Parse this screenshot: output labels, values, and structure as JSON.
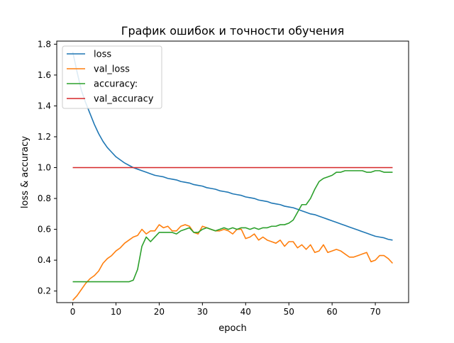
{
  "chart_data": {
    "type": "line",
    "title": "График ошибок и точности обучения",
    "xlabel": "epoch",
    "ylabel": "loss & accuracy",
    "xlim": [
      -3.7,
      77.7
    ],
    "ylim": [
      0.125,
      1.82
    ],
    "xticks": [
      0,
      10,
      20,
      30,
      40,
      50,
      60,
      70
    ],
    "yticks": [
      0.2,
      0.4,
      0.6,
      0.8,
      1.0,
      1.2,
      1.4,
      1.6,
      1.8
    ],
    "ytick_labels": [
      "0.2",
      "0.4",
      "0.6",
      "0.8",
      "1.0",
      "1.2",
      "1.4",
      "1.6",
      "1.8"
    ],
    "grid": false,
    "legend_position": "top-left",
    "series": [
      {
        "name": "loss",
        "color": "#1f77b4",
        "x": [
          0,
          1,
          2,
          3,
          4,
          5,
          6,
          7,
          8,
          9,
          10,
          11,
          12,
          13,
          14,
          15,
          16,
          17,
          18,
          19,
          20,
          21,
          22,
          23,
          24,
          25,
          26,
          27,
          28,
          29,
          30,
          31,
          32,
          33,
          34,
          35,
          36,
          37,
          38,
          39,
          40,
          41,
          42,
          43,
          44,
          45,
          46,
          47,
          48,
          49,
          50,
          51,
          52,
          53,
          54,
          55,
          56,
          57,
          58,
          59,
          60,
          61,
          62,
          63,
          64,
          65,
          66,
          67,
          68,
          69,
          70,
          71,
          72,
          73,
          74
        ],
        "y": [
          1.75,
          1.62,
          1.5,
          1.42,
          1.35,
          1.28,
          1.22,
          1.17,
          1.13,
          1.1,
          1.07,
          1.05,
          1.03,
          1.015,
          1.0,
          0.99,
          0.98,
          0.97,
          0.96,
          0.95,
          0.945,
          0.94,
          0.93,
          0.925,
          0.92,
          0.91,
          0.905,
          0.9,
          0.89,
          0.885,
          0.88,
          0.87,
          0.865,
          0.86,
          0.85,
          0.845,
          0.84,
          0.83,
          0.825,
          0.82,
          0.81,
          0.805,
          0.8,
          0.79,
          0.785,
          0.78,
          0.77,
          0.765,
          0.76,
          0.75,
          0.745,
          0.74,
          0.73,
          0.72,
          0.71,
          0.7,
          0.695,
          0.685,
          0.675,
          0.665,
          0.655,
          0.645,
          0.635,
          0.625,
          0.615,
          0.605,
          0.595,
          0.585,
          0.575,
          0.565,
          0.555,
          0.55,
          0.545,
          0.535,
          0.53
        ]
      },
      {
        "name": "val_loss",
        "color": "#ff7f0e",
        "x": [
          0,
          1,
          2,
          3,
          4,
          5,
          6,
          7,
          8,
          9,
          10,
          11,
          12,
          13,
          14,
          15,
          16,
          17,
          18,
          19,
          20,
          21,
          22,
          23,
          24,
          25,
          26,
          27,
          28,
          29,
          30,
          31,
          32,
          33,
          34,
          35,
          36,
          37,
          38,
          39,
          40,
          41,
          42,
          43,
          44,
          45,
          46,
          47,
          48,
          49,
          50,
          51,
          52,
          53,
          54,
          55,
          56,
          57,
          58,
          59,
          60,
          61,
          62,
          63,
          64,
          65,
          66,
          67,
          68,
          69,
          70,
          71,
          72,
          73,
          74
        ],
        "y": [
          0.14,
          0.17,
          0.21,
          0.25,
          0.28,
          0.3,
          0.33,
          0.38,
          0.41,
          0.43,
          0.46,
          0.48,
          0.51,
          0.53,
          0.55,
          0.56,
          0.6,
          0.57,
          0.59,
          0.59,
          0.63,
          0.61,
          0.62,
          0.59,
          0.59,
          0.62,
          0.63,
          0.62,
          0.58,
          0.57,
          0.62,
          0.61,
          0.6,
          0.59,
          0.59,
          0.6,
          0.59,
          0.57,
          0.6,
          0.6,
          0.54,
          0.55,
          0.57,
          0.53,
          0.55,
          0.53,
          0.52,
          0.51,
          0.53,
          0.49,
          0.52,
          0.52,
          0.48,
          0.5,
          0.47,
          0.5,
          0.45,
          0.46,
          0.5,
          0.45,
          0.46,
          0.47,
          0.46,
          0.44,
          0.42,
          0.42,
          0.43,
          0.44,
          0.45,
          0.39,
          0.4,
          0.43,
          0.43,
          0.41,
          0.38
        ]
      },
      {
        "name": "accuracy:",
        "color": "#2ca02c",
        "x": [
          0,
          1,
          2,
          3,
          4,
          5,
          6,
          7,
          8,
          9,
          10,
          11,
          12,
          13,
          14,
          15,
          16,
          17,
          18,
          19,
          20,
          21,
          22,
          23,
          24,
          25,
          26,
          27,
          28,
          29,
          30,
          31,
          32,
          33,
          34,
          35,
          36,
          37,
          38,
          39,
          40,
          41,
          42,
          43,
          44,
          45,
          46,
          47,
          48,
          49,
          50,
          51,
          52,
          53,
          54,
          55,
          56,
          57,
          58,
          59,
          60,
          61,
          62,
          63,
          64,
          65,
          66,
          67,
          68,
          69,
          70,
          71,
          72,
          73,
          74
        ],
        "y": [
          0.26,
          0.26,
          0.26,
          0.26,
          0.26,
          0.26,
          0.26,
          0.26,
          0.26,
          0.26,
          0.26,
          0.26,
          0.26,
          0.26,
          0.27,
          0.34,
          0.49,
          0.55,
          0.52,
          0.55,
          0.58,
          0.58,
          0.58,
          0.58,
          0.57,
          0.59,
          0.6,
          0.61,
          0.58,
          0.58,
          0.6,
          0.61,
          0.6,
          0.59,
          0.6,
          0.61,
          0.6,
          0.61,
          0.6,
          0.61,
          0.61,
          0.6,
          0.61,
          0.6,
          0.61,
          0.61,
          0.62,
          0.62,
          0.63,
          0.63,
          0.64,
          0.66,
          0.71,
          0.76,
          0.76,
          0.8,
          0.86,
          0.91,
          0.93,
          0.94,
          0.95,
          0.97,
          0.97,
          0.98,
          0.98,
          0.98,
          0.98,
          0.98,
          0.97,
          0.97,
          0.98,
          0.98,
          0.97,
          0.97,
          0.97
        ]
      },
      {
        "name": "val_accuracy",
        "color": "#d62728",
        "x": [
          0,
          74
        ],
        "y": [
          1.0,
          1.0
        ]
      }
    ]
  }
}
